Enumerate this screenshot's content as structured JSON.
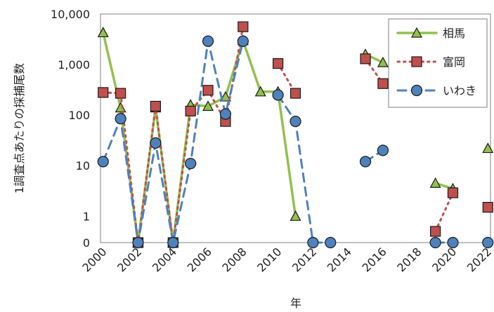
{
  "chart_data": {
    "type": "line",
    "title": "",
    "xlabel": "年",
    "ylabel": "1調査点あたりの採捕尾数",
    "y_scale": "log",
    "ylim": [
      0.3,
      10000
    ],
    "xlim": [
      2000,
      2022
    ],
    "x_ticks": [
      2000,
      2002,
      2004,
      2006,
      2008,
      2010,
      2012,
      2014,
      2016,
      2018,
      2020,
      2022
    ],
    "y_ticks": [
      {
        "value": 0.3,
        "label": "0"
      },
      {
        "value": 1,
        "label": "1"
      },
      {
        "value": 10,
        "label": "10"
      },
      {
        "value": 100,
        "label": "100"
      },
      {
        "value": 1000,
        "label": "1,000"
      },
      {
        "value": 10000,
        "label": "10,000"
      }
    ],
    "grid": false,
    "legend_position": "top-right",
    "series": [
      {
        "name": "相馬",
        "color": "#92c050",
        "dash": "solid",
        "marker": "triangle",
        "marker_fill": "#92c050",
        "points": [
          [
            2000,
            4300
          ],
          [
            2001,
            140
          ],
          [
            2002,
            0.3
          ],
          [
            2003,
            140
          ],
          [
            2004,
            0.3
          ],
          [
            2005,
            160
          ],
          [
            2006,
            150
          ],
          [
            2007,
            230
          ],
          [
            2008,
            3000
          ],
          [
            2009,
            290
          ],
          [
            2010,
            290
          ],
          [
            2011,
            1
          ],
          null,
          [
            2015,
            1600
          ],
          [
            2016,
            1100
          ],
          null,
          [
            2019,
            4.5
          ],
          [
            2020,
            3.5
          ],
          null,
          [
            2022,
            22
          ]
        ]
      },
      {
        "name": "富岡",
        "color": "#c0504d",
        "dash": "dot",
        "marker": "square",
        "marker_fill": "#c0504d",
        "points": [
          [
            2000,
            280
          ],
          [
            2001,
            270
          ],
          [
            2002,
            0.3
          ],
          [
            2003,
            150
          ],
          [
            2004,
            0.3
          ],
          [
            2005,
            120
          ],
          [
            2006,
            310
          ],
          [
            2007,
            75
          ],
          [
            2008,
            5600
          ],
          null,
          [
            2010,
            1050
          ],
          [
            2011,
            270
          ],
          null,
          [
            2015,
            1300
          ],
          [
            2016,
            420
          ],
          null,
          [
            2019,
            0.5
          ],
          [
            2020,
            2.9
          ],
          null,
          [
            2022,
            1.5
          ]
        ]
      },
      {
        "name": "いわき",
        "color": "#4f81bd",
        "dash": "dash",
        "marker": "circle",
        "marker_fill": "#4f81bd",
        "points": [
          [
            2000,
            12
          ],
          [
            2001,
            85
          ],
          [
            2002,
            0.3
          ],
          [
            2003,
            28
          ],
          [
            2004,
            0.3
          ],
          [
            2005,
            11
          ],
          [
            2006,
            2900
          ],
          [
            2007,
            105
          ],
          [
            2008,
            2900
          ],
          null,
          [
            2010,
            250
          ],
          [
            2011,
            75
          ],
          [
            2012,
            0.3
          ],
          [
            2013,
            0.3
          ],
          null,
          [
            2015,
            12
          ],
          [
            2016,
            20
          ],
          null,
          [
            2019,
            0.3
          ],
          [
            2020,
            0.3
          ],
          null,
          [
            2022,
            0.3
          ]
        ]
      }
    ]
  }
}
